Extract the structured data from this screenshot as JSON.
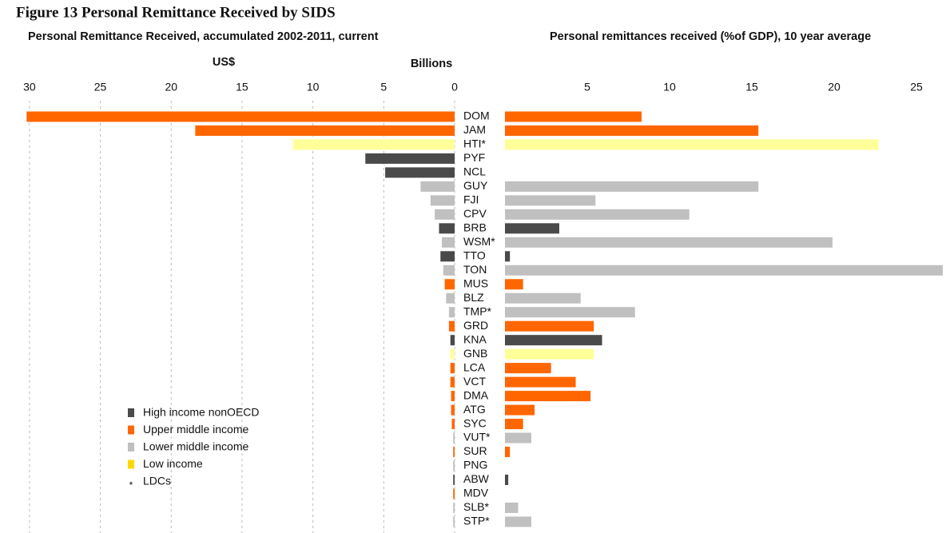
{
  "title": "Figure 13 Personal Remittance Received by SIDS",
  "chart_data": [
    {
      "type": "hbar",
      "title": "Personal Remittance Received, accumulated 2002-2011, current",
      "unit": "US$",
      "x_label": "Billions",
      "categories": [
        "DOM",
        "JAM",
        "HTI*",
        "PYF",
        "NCL",
        "GUY",
        "FJI",
        "CPV",
        "BRB",
        "WSM*",
        "TTO",
        "TON",
        "MUS",
        "BLZ",
        "TMP*",
        "GRD",
        "KNA",
        "GNB",
        "LCA",
        "VCT",
        "DMA",
        "ATG",
        "SYC",
        "VUT*",
        "SUR",
        "PNG",
        "ABW",
        "MDV",
        "SLB*",
        "STP*"
      ],
      "values": [
        30.2,
        18.3,
        11.4,
        6.3,
        4.9,
        2.4,
        1.7,
        1.4,
        1.1,
        0.9,
        1.0,
        0.8,
        0.7,
        0.6,
        0.4,
        0.4,
        0.3,
        0.3,
        0.3,
        0.3,
        0.25,
        0.25,
        0.2,
        0.1,
        0.1,
        0.1,
        0.1,
        0.1,
        0.1,
        0.1
      ],
      "bar_colors": [
        "#ff6600",
        "#ff6600",
        "#ffff99",
        "#4a4a4a",
        "#4a4a4a",
        "#c0c0c0",
        "#c0c0c0",
        "#c0c0c0",
        "#4a4a4a",
        "#c0c0c0",
        "#4a4a4a",
        "#c0c0c0",
        "#ff6600",
        "#c0c0c0",
        "#c0c0c0",
        "#ff6600",
        "#4a4a4a",
        "#ffff99",
        "#ff6600",
        "#ff6600",
        "#ff6600",
        "#ff6600",
        "#ff6600",
        "#c0c0c0",
        "#ff6600",
        "#c0c0c0",
        "#4a4a4a",
        "#ff6600",
        "#c0c0c0",
        "#c0c0c0"
      ],
      "xlim": [
        0,
        30.5
      ],
      "xticks": [
        0,
        5,
        10,
        15,
        20,
        25,
        30
      ],
      "x_reversed": true,
      "grid": true,
      "legend": [
        {
          "name": "High income nonOECD",
          "color": "#4a4a4a"
        },
        {
          "name": "Upper middle income",
          "color": "#ff6600"
        },
        {
          "name": "Lower middle income",
          "color": "#c0c0c0"
        },
        {
          "name": "Low income",
          "color": "#ffd700"
        },
        {
          "name": "LDCs",
          "symbol": "*"
        }
      ]
    },
    {
      "type": "hbar",
      "title": "Personal remittances received (%of GDP), 10 year average",
      "values": [
        8.3,
        15.4,
        22.7,
        0,
        0,
        15.4,
        5.5,
        11.2,
        3.3,
        19.9,
        0.3,
        26.6,
        1.1,
        4.6,
        7.9,
        5.4,
        5.9,
        5.4,
        2.8,
        4.3,
        5.2,
        1.8,
        1.1,
        1.6,
        0.3,
        0,
        0.2,
        0,
        0.8,
        1.6
      ],
      "xlim": [
        0,
        26.7
      ],
      "xticks": [
        5,
        10,
        15,
        20,
        25
      ],
      "x_reversed": false,
      "grid": false
    }
  ]
}
